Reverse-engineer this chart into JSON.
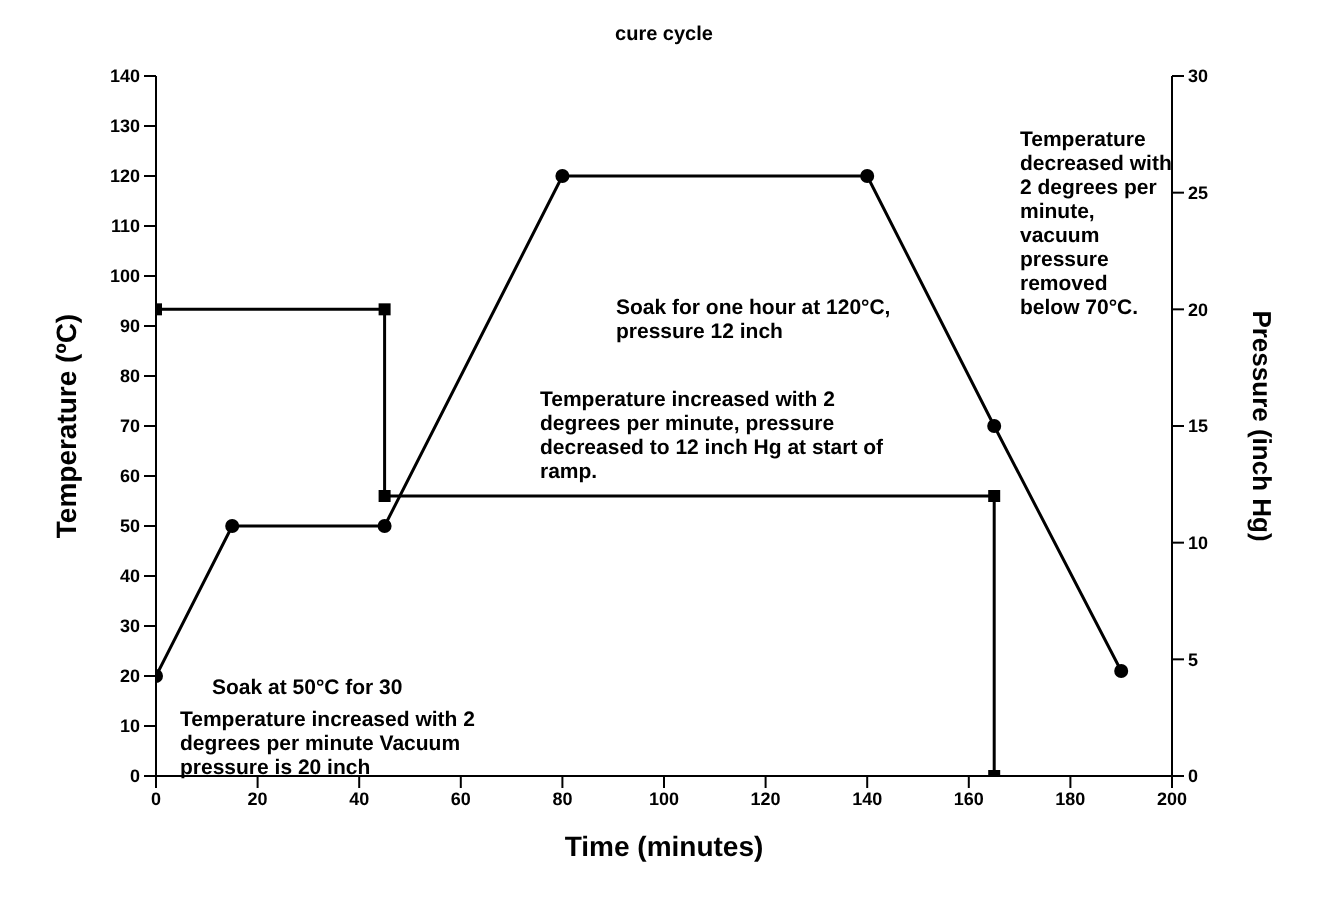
{
  "chart_data": {
    "type": "line",
    "title": "cure cycle",
    "xlabel": "Time (minutes)",
    "ylabel": "Temperature (ºC)",
    "y2label": "Pressure (inch Hg)",
    "series": [
      {
        "color": "#000000",
        "marker": "circle",
        "x": [
          0,
          15,
          45,
          80,
          140,
          165,
          190
        ],
        "values": [
          20,
          50,
          50,
          120,
          120,
          70,
          21
        ]
      },
      {
        "color": "#000000",
        "marker": "square",
        "axis": "y2",
        "x": [
          0,
          45,
          45,
          165,
          165
        ],
        "values": [
          20,
          20,
          12,
          12,
          0
        ]
      }
    ],
    "xlim": [
      0,
      200
    ],
    "xticks": [
      0,
      20,
      40,
      60,
      80,
      100,
      120,
      140,
      160,
      180,
      200
    ],
    "ylim": [
      0,
      140
    ],
    "yticks": [
      0,
      10,
      20,
      30,
      40,
      50,
      60,
      70,
      80,
      90,
      100,
      110,
      120,
      130,
      140
    ],
    "y2lim": [
      0,
      30
    ],
    "y2ticks": [
      0,
      5,
      10,
      15,
      20,
      25,
      30
    ],
    "annotations": [
      "Soak for one hour at 120°C, pressure 12 inch",
      "Temperature decreased with 2 degrees per minute, vacuum pressure removed below 70°C.",
      "Temperature increased with 2 degrees per minute, pressure decreased to 12 inch Hg at start of ramp.",
      "Soak at 50°C for 30",
      "Temperature increased with 2 degrees per minute Vacuum pressure is 20 inch"
    ],
    "grid": false,
    "legend": false
  }
}
